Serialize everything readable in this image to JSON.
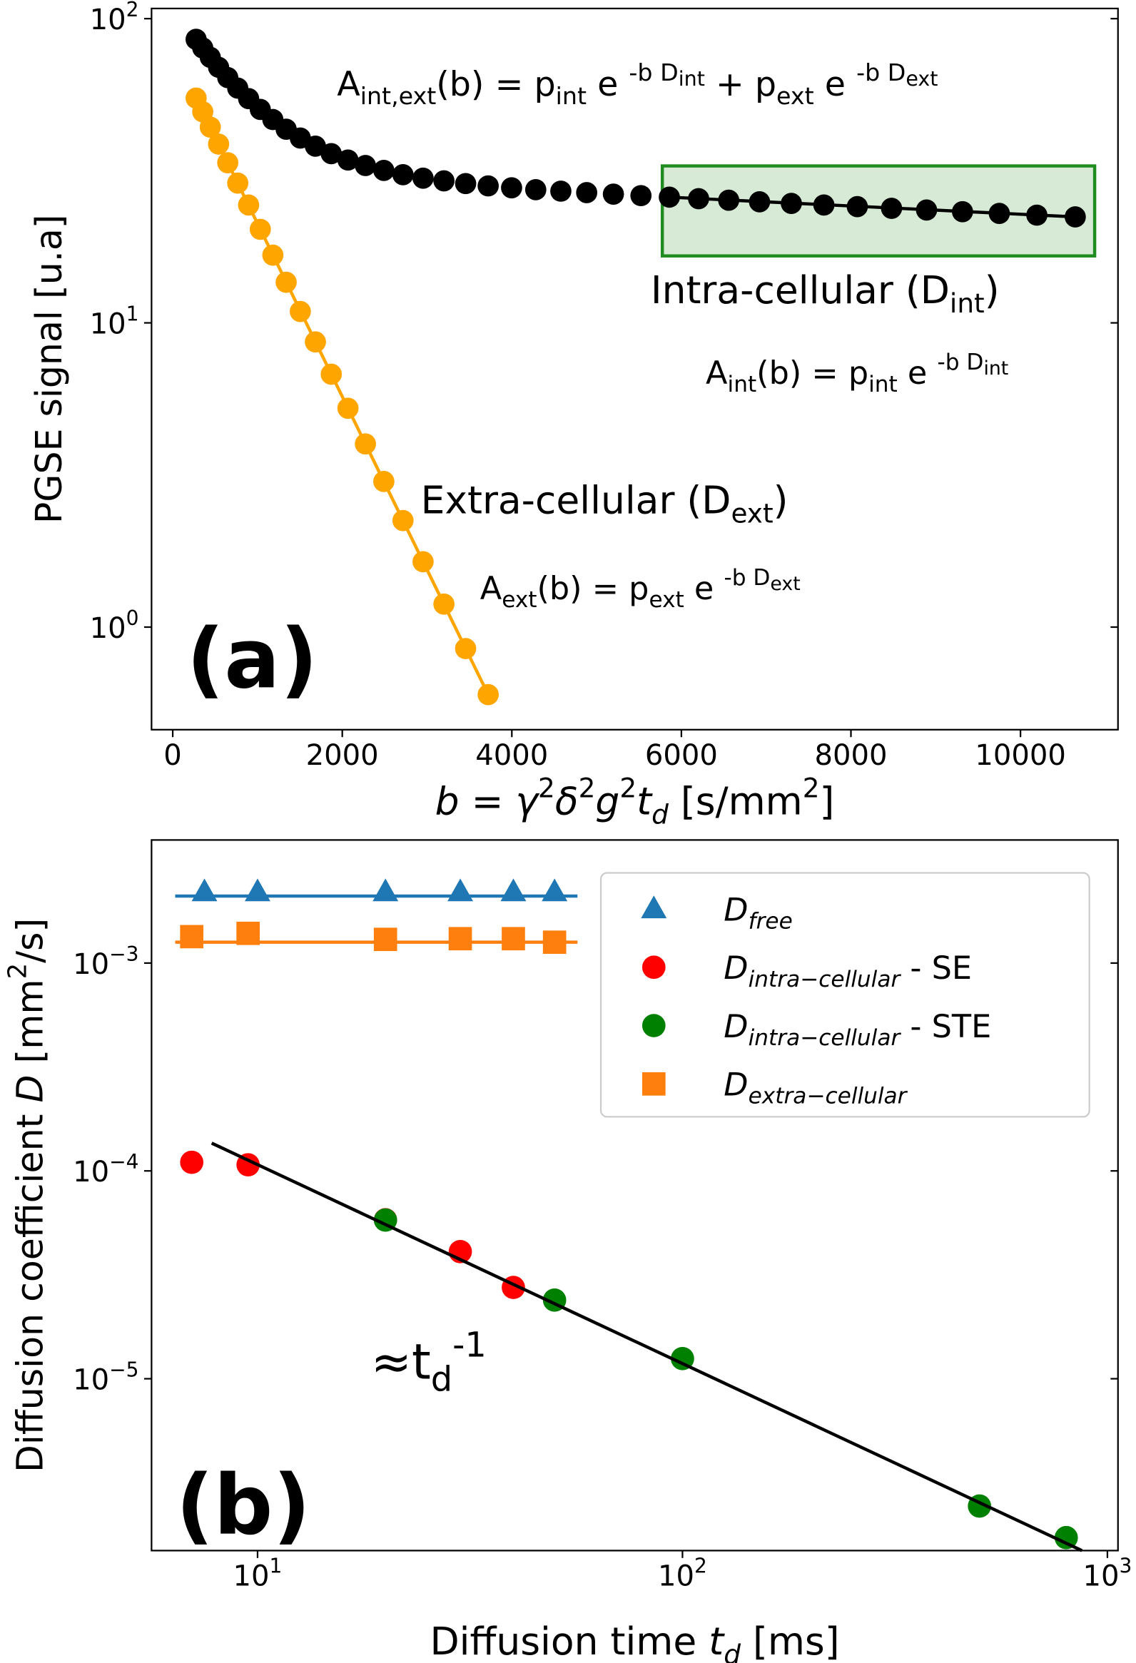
{
  "chart_data": [
    {
      "type": "scatter",
      "panel_label": "(a)",
      "xlabel": [
        {
          "it": "b"
        },
        " = ",
        {
          "it": "γ"
        },
        {
          "sup": "2"
        },
        {
          "it": "δ"
        },
        {
          "sup": "2"
        },
        {
          "it": "g"
        },
        {
          "sup": "2"
        },
        {
          "it": "t"
        },
        {
          "itsub": "d"
        },
        " [s/mm",
        {
          "sup": "2"
        },
        "]"
      ],
      "ylabel": "PGSE signal [u.a]",
      "xlim": [
        -250,
        11150
      ],
      "ylim": [
        0.46,
        108
      ],
      "ylog": true,
      "xticks": [
        0,
        2000,
        4000,
        6000,
        8000,
        10000
      ],
      "yticks": [
        {
          "value": 1,
          "label": [
            "10",
            {
              "sup": "0"
            }
          ]
        },
        {
          "value": 10,
          "label": [
            "10",
            {
              "sup": "1"
            }
          ]
        },
        {
          "value": 100,
          "label": [
            "10",
            {
              "sup": "2"
            }
          ]
        }
      ],
      "highlight": {
        "x": [
          5775,
          10875
        ],
        "y": [
          16.6,
          32.8
        ],
        "color": "#1e8c1e"
      },
      "annotations": [
        [
          "A",
          {
            "sub": "int,ext"
          },
          "(b) = p",
          {
            "sub": "int"
          },
          " e ",
          {
            "sup": "-b D"
          },
          {
            "supsub": "int"
          },
          " + p",
          {
            "sub": "ext"
          },
          " e ",
          {
            "sup": "-b D"
          },
          {
            "supsub": "ext"
          }
        ],
        [
          "Intra-cellular (D",
          {
            "sub": "int"
          },
          ")"
        ],
        [
          "A",
          {
            "sub": "int"
          },
          "(b) = p",
          {
            "sub": "int"
          },
          " e ",
          {
            "sup": "-b D"
          },
          {
            "supsub": "int"
          }
        ],
        [
          "Extra-cellular (D",
          {
            "sub": "ext"
          },
          ")"
        ],
        [
          "A",
          {
            "sub": "ext"
          },
          "(b) = p",
          {
            "sub": "ext"
          },
          " e ",
          {
            "sup": "-b D"
          },
          {
            "supsub": "ext"
          }
        ]
      ],
      "series": [
        {
          "color": "#000000",
          "marker": "o",
          "x": [
            276,
            354,
            443,
            541,
            649,
            767,
            895,
            1033,
            1181,
            1338,
            1505,
            1683,
            1870,
            2067,
            2273,
            2490,
            2716,
            2953,
            3199,
            3455,
            3721,
            3997,
            4282,
            4578,
            4883,
            5198,
            5523,
            5858,
            6203,
            6558,
            6922,
            7297,
            7681,
            8075,
            8479,
            8892,
            9316,
            9750,
            10193,
            10646
          ],
          "values": [
            85.5,
            80.1,
            74.6,
            69.2,
            64.0,
            59.1,
            54.6,
            50.3,
            46.6,
            43.3,
            40.5,
            38.1,
            36.0,
            34.3,
            32.9,
            31.7,
            30.7,
            29.9,
            29.3,
            28.7,
            28.2,
            27.8,
            27.4,
            27.1,
            26.8,
            26.5,
            26.2,
            25.9,
            25.6,
            25.3,
            25.0,
            24.7,
            24.4,
            24.1,
            23.8,
            23.5,
            23.2,
            22.9,
            22.6,
            22.3
          ]
        },
        {
          "color": "#ffa500",
          "marker": "o",
          "x": [
            276,
            354,
            443,
            541,
            649,
            767,
            895,
            1033,
            1181,
            1338,
            1505,
            1683,
            1870,
            2067,
            2273,
            2490,
            2716,
            2953,
            3199,
            3455,
            3721
          ],
          "values": [
            54.8,
            49.4,
            44.0,
            38.7,
            33.6,
            28.8,
            24.4,
            20.3,
            16.7,
            13.6,
            10.9,
            8.66,
            6.78,
            5.24,
            4.0,
            3.01,
            2.24,
            1.64,
            1.19,
            0.85,
            0.6
          ]
        },
        {
          "color": "#000000",
          "line": true,
          "x": [
            5858,
            10646
          ],
          "values": [
            25.9,
            22.3
          ]
        },
        {
          "color": "#ffa500",
          "line": true,
          "x": [
            276,
            3721
          ],
          "values": [
            54.8,
            0.6
          ]
        }
      ]
    },
    {
      "type": "scatter",
      "panel_label": "(b)",
      "xlabel": [
        "Diffusion time ",
        {
          "it": "t"
        },
        {
          "itsub": "d"
        },
        " [ms]"
      ],
      "ylabel": [
        "Diffusion coefficient ",
        {
          "it": "D"
        },
        " [mm",
        {
          "sup": "2"
        },
        "/s]"
      ],
      "xlim": [
        5.63,
        1059
      ],
      "ylim": [
        1.49e-06,
        0.00391
      ],
      "xlog": true,
      "ylog": true,
      "xticks": [
        {
          "value": 10,
          "label": [
            "10",
            {
              "sup": "1"
            }
          ]
        },
        {
          "value": 100,
          "label": [
            "10",
            {
              "sup": "2"
            }
          ]
        },
        {
          "value": 1000,
          "label": [
            "10",
            {
              "sup": "3"
            }
          ]
        }
      ],
      "yticks": [
        {
          "value": 1e-05,
          "label": [
            "10",
            {
              "sup": "−5"
            }
          ]
        },
        {
          "value": 0.0001,
          "label": [
            "10",
            {
              "sup": "−4"
            }
          ]
        },
        {
          "value": 0.001,
          "label": [
            "10",
            {
              "sup": "−3"
            }
          ]
        }
      ],
      "annotations": [
        [
          "≈t",
          {
            "sub": "d"
          },
          {
            "sup": "-1"
          }
        ]
      ],
      "legend": "upper right",
      "series": [
        {
          "name": [
            {
              "it": "D"
            },
            {
              "itsub": "free"
            }
          ],
          "color": "#1f77b4",
          "marker": "^",
          "x": [
            7.5,
            10,
            20,
            30,
            40,
            50
          ],
          "values": [
            0.0022,
            0.0022,
            0.0022,
            0.0022,
            0.0022,
            0.0022
          ]
        },
        {
          "name": [
            {
              "it": "D"
            },
            {
              "itsub": "intra−cellular"
            },
            " - SE"
          ],
          "color": "#ff0000",
          "marker": "o",
          "x": [
            7,
            9.5,
            20,
            30,
            40
          ],
          "values": [
            0.00011,
            0.000107,
            5.82e-05,
            4.09e-05,
            2.75e-05
          ]
        },
        {
          "name": [
            {
              "it": "D"
            },
            {
              "itsub": "intra−cellular"
            },
            " - STE"
          ],
          "color": "#008000",
          "marker": "o",
          "x": [
            20,
            50,
            100,
            500,
            800
          ],
          "values": [
            5.8e-05,
            2.39e-05,
            1.25e-05,
            2.44e-06,
            1.72e-06
          ]
        },
        {
          "name": [
            {
              "it": "D"
            },
            {
              "itsub": "extra−cellular"
            }
          ],
          "color": "#ff7f0e",
          "marker": "s",
          "x": [
            7,
            9.5,
            20,
            30,
            40,
            50
          ],
          "values": [
            0.00134,
            0.00139,
            0.0013,
            0.00131,
            0.00131,
            0.00126
          ]
        },
        {
          "color": "#1f77b4",
          "line": true,
          "x": [
            6.4,
            56.6
          ],
          "values": [
            0.0021,
            0.0021
          ]
        },
        {
          "color": "#ff7f0e",
          "line": true,
          "x": [
            6.4,
            56.6
          ],
          "values": [
            0.00126,
            0.00126
          ]
        },
        {
          "color": "#000000",
          "line": true,
          "x": [
            7.8,
            871
          ],
          "values": [
            0.000136,
            1.49e-06
          ]
        }
      ]
    }
  ]
}
